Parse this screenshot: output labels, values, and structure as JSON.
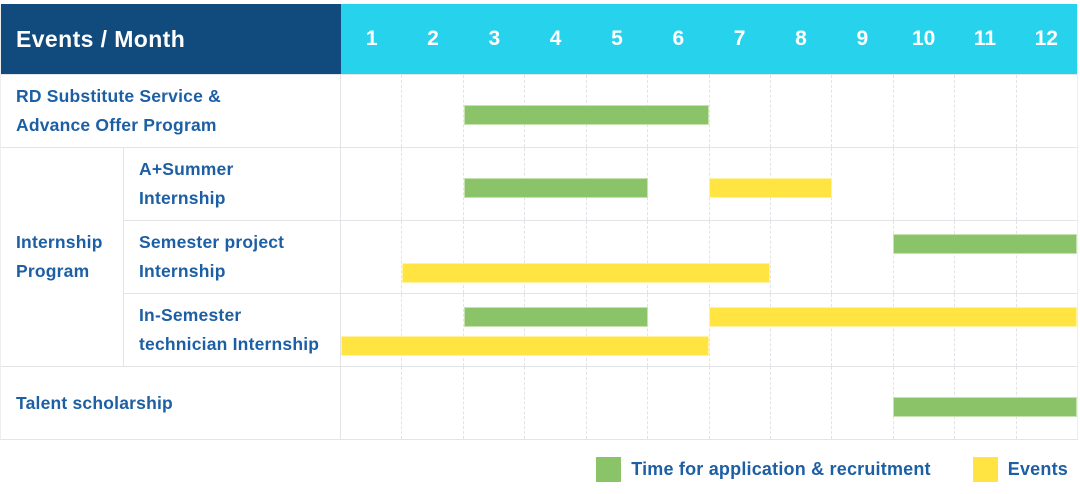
{
  "header": {
    "corner_label": "Events / Month",
    "months": [
      "1",
      "2",
      "3",
      "4",
      "5",
      "6",
      "7",
      "8",
      "9",
      "10",
      "11",
      "12"
    ]
  },
  "colors": {
    "header_bg": "#114A7D",
    "month_header_bg": "#26D2EC",
    "label_text": "#1D5FA4",
    "green": "#8AC368",
    "yellow": "#FFE442",
    "grid_line": "#E3E4E8"
  },
  "chart_data": {
    "type": "gantt",
    "unit": "month",
    "x_domain": [
      1,
      12
    ],
    "x_tick_labels": [
      "1",
      "2",
      "3",
      "4",
      "5",
      "6",
      "7",
      "8",
      "9",
      "10",
      "11",
      "12"
    ],
    "corner_label": "Events / Month",
    "legend": [
      {
        "kind": "green",
        "label": "Time for application & recruitment"
      },
      {
        "kind": "yellow",
        "label": "Events"
      }
    ],
    "legend_position": "bottom-right",
    "rows": [
      {
        "group": null,
        "label": "RD Substitute Service &\nAdvance Offer Program",
        "lines": [
          [
            {
              "start": 3,
              "end": 6,
              "kind": "green"
            }
          ]
        ]
      },
      {
        "group": "Internship Program",
        "group_span": 3,
        "label": "A+Summer\nInternship",
        "lines": [
          [
            {
              "start": 3,
              "end": 5,
              "kind": "green"
            },
            {
              "start": 7,
              "end": 8,
              "kind": "yellow"
            }
          ]
        ]
      },
      {
        "group": "Internship Program",
        "label": "Semester project\nInternship",
        "lines": [
          [
            {
              "start": 10,
              "end": 12,
              "kind": "green"
            }
          ],
          [
            {
              "start": 2,
              "end": 7,
              "kind": "yellow"
            }
          ]
        ]
      },
      {
        "group": "Internship Program",
        "label": "In-Semester\ntechnician Internship",
        "lines": [
          [
            {
              "start": 3,
              "end": 5,
              "kind": "green"
            },
            {
              "start": 7,
              "end": 12,
              "kind": "yellow"
            }
          ],
          [
            {
              "start": 1,
              "end": 6,
              "kind": "yellow"
            }
          ]
        ]
      },
      {
        "group": null,
        "label": "Talent scholarship",
        "lines": [
          [
            {
              "start": 10,
              "end": 12,
              "kind": "green"
            }
          ]
        ]
      }
    ]
  }
}
